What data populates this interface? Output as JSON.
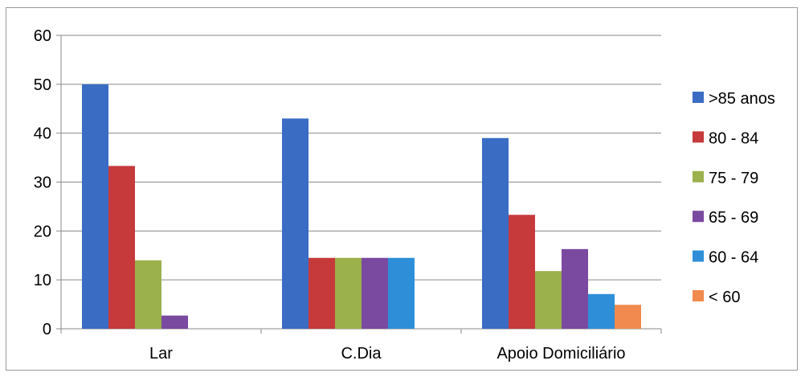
{
  "chart_data": {
    "type": "bar",
    "title": "",
    "xlabel": "",
    "ylabel": "",
    "categories": [
      "Lar",
      "C.Dia",
      "Apoio Domiciliário"
    ],
    "ylim": [
      0,
      60
    ],
    "yticks": [
      "0",
      "10",
      "20",
      "30",
      "40",
      "50",
      "60"
    ],
    "grid": true,
    "legend_position": "right",
    "series": [
      {
        "name": ">85 anos",
        "color": "#3a6cc4",
        "values": [
          50,
          43,
          39
        ]
      },
      {
        "name": "80 - 84",
        "color": "#c63a3c",
        "values": [
          33.3,
          14.5,
          23.3
        ]
      },
      {
        "name": "75 - 79",
        "color": "#9bb14c",
        "values": [
          14,
          14.5,
          11.8
        ]
      },
      {
        "name": "65 - 69",
        "color": "#7a4aa0",
        "values": [
          2.7,
          14.5,
          16.3
        ]
      },
      {
        "name": "60 - 64",
        "color": "#2e8fd8",
        "values": [
          null,
          14.5,
          7.1
        ]
      },
      {
        "name": "< 60",
        "color": "#f08a4e",
        "values": [
          null,
          null,
          4.9
        ]
      }
    ]
  }
}
